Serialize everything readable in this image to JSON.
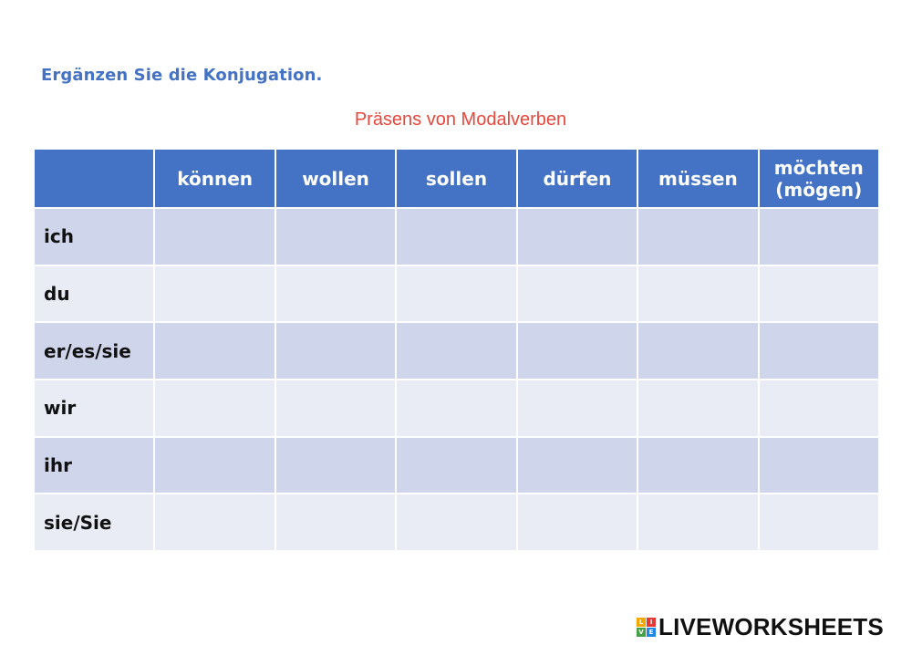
{
  "instruction": "Ergänzen Sie die Konjugation.",
  "title": "Präsens von Modalverben",
  "table": {
    "corner": "",
    "columns": [
      "können",
      "wollen",
      "sollen",
      "dürfen",
      "müssen",
      "möchten (mögen)"
    ],
    "rows": [
      "ich",
      "du",
      "er/es/sie",
      "wir",
      "ihr",
      "sie/Sie"
    ],
    "answers": [
      [
        "",
        "",
        "",
        "",
        "",
        ""
      ],
      [
        "",
        "",
        "",
        "",
        "",
        ""
      ],
      [
        "",
        "",
        "",
        "",
        "",
        ""
      ],
      [
        "",
        "",
        "",
        "",
        "",
        ""
      ],
      [
        "",
        "",
        "",
        "",
        "",
        ""
      ],
      [
        "",
        "",
        "",
        "",
        "",
        ""
      ]
    ]
  },
  "colors": {
    "header_bg": "#4472c4",
    "row_odd": "#cfd5ea",
    "row_even": "#e9ebf5",
    "instruction": "#4472c4",
    "title": "#e8473b"
  },
  "logo": {
    "text": "LIVEWORKSHEETS",
    "icon": "liveworksheets-logo-icon"
  }
}
